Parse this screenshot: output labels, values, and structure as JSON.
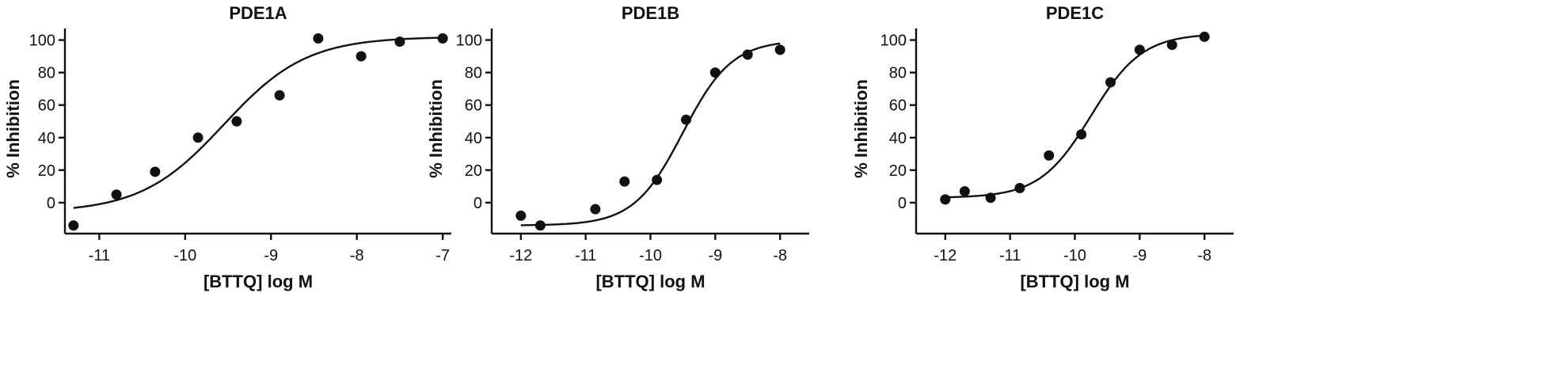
{
  "chart_data": [
    {
      "type": "scatter",
      "title": "PDE1A",
      "xlabel": "[BTTQ] log M",
      "ylabel": "% Inhibition",
      "xlim": [
        -11.4,
        -6.9
      ],
      "ylim": [
        -19,
        110
      ],
      "x_ticks": [
        -11,
        -10,
        -9,
        -8,
        -7
      ],
      "y_ticks": [
        0,
        20,
        40,
        60,
        80,
        100
      ],
      "points": [
        {
          "x": -11.3,
          "y": -14
        },
        {
          "x": -10.8,
          "y": 5
        },
        {
          "x": -10.35,
          "y": 19
        },
        {
          "x": -9.85,
          "y": 40
        },
        {
          "x": -9.4,
          "y": 50
        },
        {
          "x": -8.9,
          "y": 66
        },
        {
          "x": -8.45,
          "y": 101
        },
        {
          "x": -7.95,
          "y": 90
        },
        {
          "x": -7.5,
          "y": 99
        },
        {
          "x": -7.0,
          "y": 101
        }
      ],
      "fit": {
        "bottom": -6,
        "top": 102,
        "logIC50": -9.55,
        "hill": 0.9,
        "x_range": [
          -11.3,
          -7.0
        ]
      }
    },
    {
      "type": "scatter",
      "title": "PDE1B",
      "xlabel": "[BTTQ] log M",
      "ylabel": "% Inhibition",
      "xlim": [
        -12.45,
        -7.55
      ],
      "ylim": [
        -19,
        110
      ],
      "x_ticks": [
        -12,
        -11,
        -10,
        -9,
        -8
      ],
      "y_ticks": [
        0,
        20,
        40,
        60,
        80,
        100
      ],
      "points": [
        {
          "x": -12.0,
          "y": -8
        },
        {
          "x": -11.7,
          "y": -14
        },
        {
          "x": -10.85,
          "y": -4
        },
        {
          "x": -10.4,
          "y": 13
        },
        {
          "x": -9.9,
          "y": 14
        },
        {
          "x": -9.45,
          "y": 51
        },
        {
          "x": -9.0,
          "y": 80
        },
        {
          "x": -8.5,
          "y": 91
        },
        {
          "x": -8.0,
          "y": 94
        }
      ],
      "fit": {
        "bottom": -14,
        "top": 100,
        "logIC50": -9.5,
        "hill": 1.15,
        "x_range": [
          -12.0,
          -8.0
        ]
      }
    },
    {
      "type": "scatter",
      "title": "PDE1C",
      "xlabel": "[BTTQ] log M",
      "ylabel": "% Inhibition",
      "xlim": [
        -12.45,
        -7.55
      ],
      "ylim": [
        -19,
        110
      ],
      "x_ticks": [
        -12,
        -11,
        -10,
        -9,
        -8
      ],
      "y_ticks": [
        0,
        20,
        40,
        60,
        80,
        100
      ],
      "points": [
        {
          "x": -12.0,
          "y": 2
        },
        {
          "x": -11.7,
          "y": 7
        },
        {
          "x": -11.3,
          "y": 3
        },
        {
          "x": -10.85,
          "y": 9
        },
        {
          "x": -10.4,
          "y": 29
        },
        {
          "x": -9.9,
          "y": 42
        },
        {
          "x": -9.45,
          "y": 74
        },
        {
          "x": -9.0,
          "y": 94
        },
        {
          "x": -8.5,
          "y": 97
        },
        {
          "x": -8.0,
          "y": 102
        }
      ],
      "fit": {
        "bottom": 3,
        "top": 104,
        "logIC50": -9.75,
        "hill": 1.1,
        "x_range": [
          -12.0,
          -8.0
        ]
      }
    }
  ]
}
